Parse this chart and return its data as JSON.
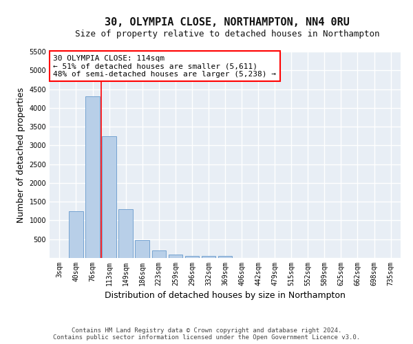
{
  "title": "30, OLYMPIA CLOSE, NORTHAMPTON, NN4 0RU",
  "subtitle": "Size of property relative to detached houses in Northampton",
  "xlabel": "Distribution of detached houses by size in Northampton",
  "ylabel": "Number of detached properties",
  "categories": [
    "3sqm",
    "40sqm",
    "76sqm",
    "113sqm",
    "149sqm",
    "186sqm",
    "223sqm",
    "259sqm",
    "296sqm",
    "332sqm",
    "369sqm",
    "406sqm",
    "442sqm",
    "479sqm",
    "515sqm",
    "552sqm",
    "589sqm",
    "625sqm",
    "662sqm",
    "698sqm",
    "735sqm"
  ],
  "values": [
    0,
    1250,
    4300,
    3250,
    1300,
    480,
    200,
    100,
    60,
    55,
    50,
    0,
    0,
    0,
    0,
    0,
    0,
    0,
    0,
    0,
    0
  ],
  "bar_color": "#b8cfe8",
  "bar_edge_color": "#6699cc",
  "red_line_x": 2.5,
  "annotation_text_line1": "30 OLYMPIA CLOSE: 114sqm",
  "annotation_text_line2": "← 51% of detached houses are smaller (5,611)",
  "annotation_text_line3": "48% of semi-detached houses are larger (5,238) →",
  "ylim": [
    0,
    5500
  ],
  "yticks": [
    0,
    500,
    1000,
    1500,
    2000,
    2500,
    3000,
    3500,
    4000,
    4500,
    5000,
    5500
  ],
  "footer_line1": "Contains HM Land Registry data © Crown copyright and database right 2024.",
  "footer_line2": "Contains public sector information licensed under the Open Government Licence v3.0.",
  "bg_color": "#e8eef5",
  "title_fontsize": 11,
  "subtitle_fontsize": 9,
  "axis_label_fontsize": 9,
  "tick_fontsize": 7,
  "footer_fontsize": 6.5,
  "annotation_fontsize": 8
}
